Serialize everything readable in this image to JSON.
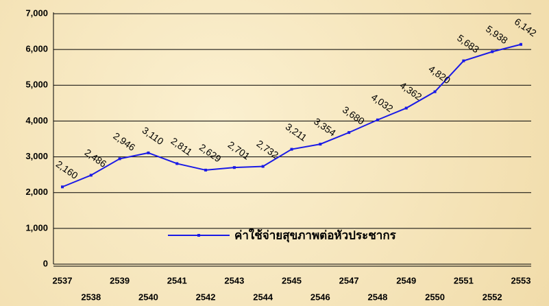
{
  "chart_data": {
    "type": "line",
    "categories": [
      "2537",
      "2538",
      "2539",
      "2540",
      "2541",
      "2542",
      "2543",
      "2544",
      "2545",
      "2546",
      "2547",
      "2548",
      "2549",
      "2550",
      "2551",
      "2552",
      "2553"
    ],
    "series": [
      {
        "name": "ค่าใช้จ่ายสุขภาพต่อหัวประชากร",
        "color": "#1a1ae6",
        "values": [
          2160,
          2486,
          2946,
          3110,
          2811,
          2629,
          2701,
          2732,
          3211,
          3354,
          3680,
          4032,
          4362,
          4820,
          5683,
          5938,
          6142
        ],
        "value_labels": [
          "2,160",
          "2,486",
          "2,946",
          "3,110",
          "2,811",
          "2,629",
          "2,701",
          "2,732",
          "3,211",
          "3,354",
          "3,680",
          "4,032",
          "4,362",
          "4,820",
          "5,683",
          "5,938",
          "6,142"
        ]
      }
    ],
    "ylim": [
      0,
      7000
    ],
    "yticks": [
      0,
      {
        "value": 1000,
        "label": "1,000"
      },
      {
        "value": 2000,
        "label": "2,000"
      },
      {
        "value": 3000,
        "label": "3,000"
      },
      {
        "value": 4000,
        "label": "4,000"
      },
      {
        "value": 5000,
        "label": "5,000"
      },
      {
        "value": 6000,
        "label": "6,000"
      },
      {
        "value": 7000,
        "label": "7,000"
      }
    ],
    "grid": true,
    "legend": "lower-center"
  }
}
